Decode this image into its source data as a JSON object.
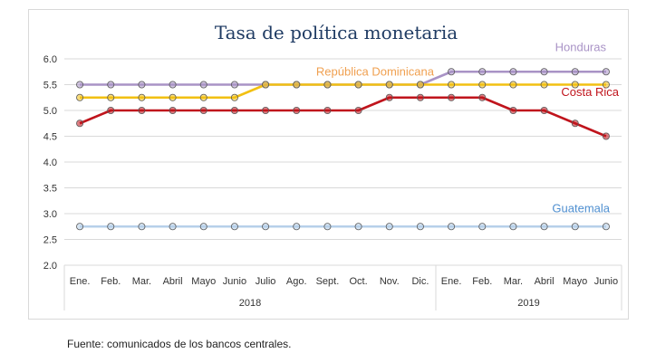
{
  "chart_data": {
    "type": "line",
    "title": "Tasa de política monetaria",
    "categories": [
      "Ene.",
      "Feb.",
      "Mar.",
      "Abril",
      "Mayo",
      "Junio",
      "Julio",
      "Ago.",
      "Sept.",
      "Oct.",
      "Nov.",
      "Dic.",
      "Ene.",
      "Feb.",
      "Mar.",
      "Abril",
      "Mayo",
      "Junio"
    ],
    "years": [
      {
        "label": "2018",
        "from": 0,
        "to": 11
      },
      {
        "label": "2019",
        "from": 12,
        "to": 17
      }
    ],
    "ylim": [
      2.0,
      6.0
    ],
    "yticks": [
      "2.0",
      "2.5",
      "3.0",
      "3.5",
      "4.0",
      "4.5",
      "5.0",
      "5.5",
      "6.0"
    ],
    "grid": true,
    "legend": "inline labels",
    "series": [
      {
        "name": "Honduras",
        "color": "#a993c6",
        "values": [
          5.5,
          5.5,
          5.5,
          5.5,
          5.5,
          5.5,
          5.5,
          5.5,
          5.5,
          5.5,
          5.5,
          5.5,
          5.75,
          5.75,
          5.75,
          5.75,
          5.75,
          5.75
        ]
      },
      {
        "name": "República Dominicana",
        "color": "#f2c012",
        "labelColor": "#f0a050",
        "values": [
          5.25,
          5.25,
          5.25,
          5.25,
          5.25,
          5.25,
          5.5,
          5.5,
          5.5,
          5.5,
          5.5,
          5.5,
          5.5,
          5.5,
          5.5,
          5.5,
          5.5,
          5.5
        ]
      },
      {
        "name": "Costa Rica",
        "color": "#c0141c",
        "values": [
          4.75,
          5.0,
          5.0,
          5.0,
          5.0,
          5.0,
          5.0,
          5.0,
          5.0,
          5.0,
          5.25,
          5.25,
          5.25,
          5.25,
          5.0,
          5.0,
          4.75,
          4.5
        ]
      },
      {
        "name": "Guatemala",
        "color": "#b7d0ea",
        "labelColor": "#4f8fd0",
        "values": [
          2.75,
          2.75,
          2.75,
          2.75,
          2.75,
          2.75,
          2.75,
          2.75,
          2.75,
          2.75,
          2.75,
          2.75,
          2.75,
          2.75,
          2.75,
          2.75,
          2.75,
          2.75
        ]
      }
    ]
  },
  "source": "Fuente: comunicados de los bancos centrales."
}
